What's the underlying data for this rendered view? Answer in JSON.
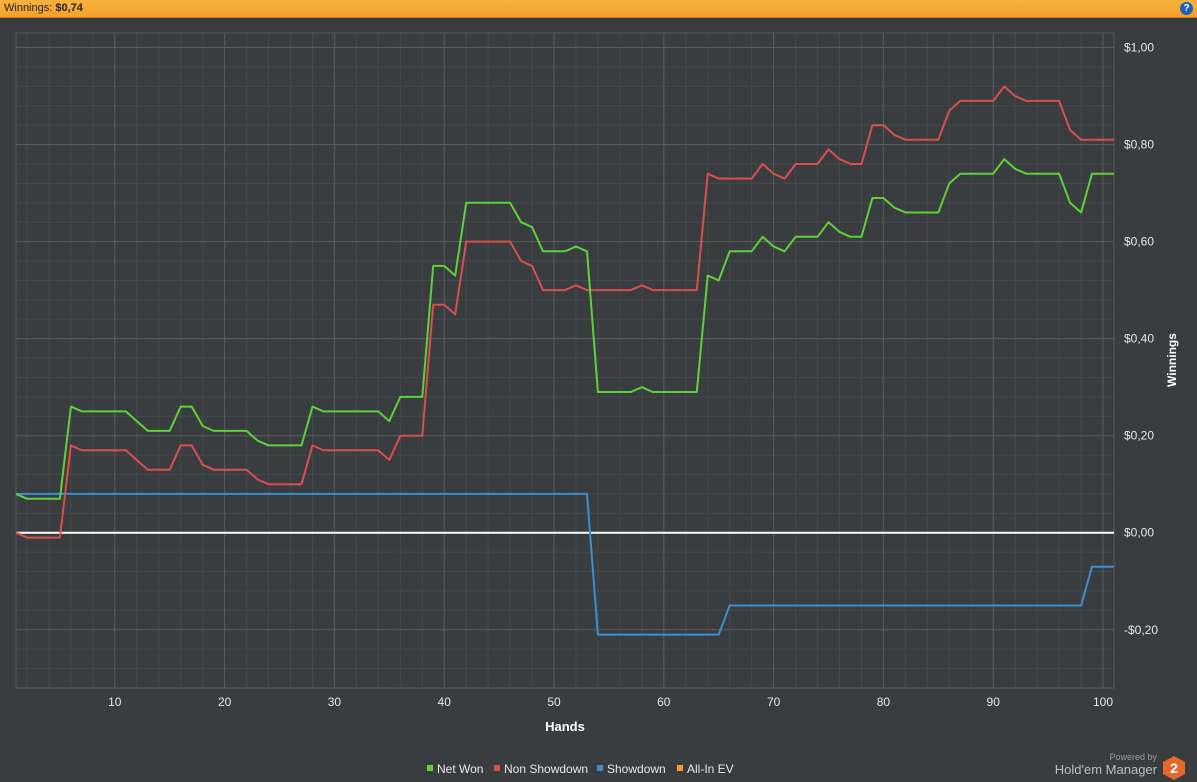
{
  "header": {
    "label": "Winnings:",
    "value": "$0,74"
  },
  "help_icon": "?",
  "branding": {
    "powered_by": "Powered by",
    "product": "Hold'em Manager",
    "logo_text": "2"
  },
  "colors": {
    "net_won": "#5fcf3a",
    "non_showdown": "#d8504b",
    "showdown": "#3b8fcf",
    "all_in_ev": "#f39b2c",
    "background": "#3a3d40",
    "grid": "#5a5d60",
    "zero_line": "#ffffff",
    "accent_bar": "#f5a833"
  },
  "chart_data": {
    "type": "line",
    "xlabel": "Hands",
    "ylabel": "Winnings",
    "xlim": [
      1,
      101
    ],
    "ylim": [
      -0.32,
      1.03
    ],
    "x_ticks": [
      10,
      20,
      30,
      40,
      50,
      60,
      70,
      80,
      90,
      100
    ],
    "y_ticks": [
      -0.2,
      0,
      0.2,
      0.4,
      0.6,
      0.8,
      1.0
    ],
    "y_tick_labels": [
      "-$0,20",
      "$0,00",
      "$0,20",
      "$0,40",
      "$0,60",
      "$0,80",
      "$1,00"
    ],
    "x_tick_labels": [
      "10",
      "20",
      "30",
      "40",
      "50",
      "60",
      "70",
      "80",
      "90",
      "100"
    ],
    "legend_position": "bottom-center",
    "grid": true,
    "series": [
      {
        "name": "Net Won",
        "color": "#5fcf3a",
        "points": [
          [
            1,
            0.08
          ],
          [
            2,
            0.07
          ],
          [
            5,
            0.07
          ],
          [
            6,
            0.26
          ],
          [
            7,
            0.25
          ],
          [
            11,
            0.25
          ],
          [
            13,
            0.21
          ],
          [
            15,
            0.21
          ],
          [
            16,
            0.26
          ],
          [
            17,
            0.26
          ],
          [
            18,
            0.22
          ],
          [
            19,
            0.21
          ],
          [
            22,
            0.21
          ],
          [
            23,
            0.19
          ],
          [
            24,
            0.18
          ],
          [
            27,
            0.18
          ],
          [
            28,
            0.26
          ],
          [
            29,
            0.25
          ],
          [
            34,
            0.25
          ],
          [
            35,
            0.23
          ],
          [
            36,
            0.28
          ],
          [
            38,
            0.28
          ],
          [
            39,
            0.55
          ],
          [
            40,
            0.55
          ],
          [
            41,
            0.53
          ],
          [
            42,
            0.68
          ],
          [
            46,
            0.68
          ],
          [
            47,
            0.64
          ],
          [
            48,
            0.63
          ],
          [
            49,
            0.58
          ],
          [
            51,
            0.58
          ],
          [
            52,
            0.59
          ],
          [
            53,
            0.58
          ],
          [
            54,
            0.29
          ],
          [
            57,
            0.29
          ],
          [
            58,
            0.3
          ],
          [
            59,
            0.29
          ],
          [
            63,
            0.29
          ],
          [
            64,
            0.53
          ],
          [
            65,
            0.52
          ],
          [
            66,
            0.58
          ],
          [
            68,
            0.58
          ],
          [
            69,
            0.61
          ],
          [
            70,
            0.59
          ],
          [
            71,
            0.58
          ],
          [
            72,
            0.61
          ],
          [
            74,
            0.61
          ],
          [
            75,
            0.64
          ],
          [
            76,
            0.62
          ],
          [
            77,
            0.61
          ],
          [
            78,
            0.61
          ],
          [
            79,
            0.69
          ],
          [
            80,
            0.69
          ],
          [
            81,
            0.67
          ],
          [
            82,
            0.66
          ],
          [
            85,
            0.66
          ],
          [
            86,
            0.72
          ],
          [
            87,
            0.74
          ],
          [
            90,
            0.74
          ],
          [
            91,
            0.77
          ],
          [
            92,
            0.75
          ],
          [
            93,
            0.74
          ],
          [
            96,
            0.74
          ],
          [
            97,
            0.68
          ],
          [
            98,
            0.66
          ],
          [
            99,
            0.74
          ],
          [
            101,
            0.74
          ]
        ]
      },
      {
        "name": "Non Showdown",
        "color": "#d8504b",
        "points": [
          [
            1,
            0.0
          ],
          [
            2,
            -0.01
          ],
          [
            5,
            -0.01
          ],
          [
            6,
            0.18
          ],
          [
            7,
            0.17
          ],
          [
            11,
            0.17
          ],
          [
            13,
            0.13
          ],
          [
            15,
            0.13
          ],
          [
            16,
            0.18
          ],
          [
            17,
            0.18
          ],
          [
            18,
            0.14
          ],
          [
            19,
            0.13
          ],
          [
            22,
            0.13
          ],
          [
            23,
            0.11
          ],
          [
            24,
            0.1
          ],
          [
            27,
            0.1
          ],
          [
            28,
            0.18
          ],
          [
            29,
            0.17
          ],
          [
            34,
            0.17
          ],
          [
            35,
            0.15
          ],
          [
            36,
            0.2
          ],
          [
            38,
            0.2
          ],
          [
            39,
            0.47
          ],
          [
            40,
            0.47
          ],
          [
            41,
            0.45
          ],
          [
            42,
            0.6
          ],
          [
            46,
            0.6
          ],
          [
            47,
            0.56
          ],
          [
            48,
            0.55
          ],
          [
            49,
            0.5
          ],
          [
            51,
            0.5
          ],
          [
            52,
            0.51
          ],
          [
            53,
            0.5
          ],
          [
            57,
            0.5
          ],
          [
            58,
            0.51
          ],
          [
            59,
            0.5
          ],
          [
            63,
            0.5
          ],
          [
            64,
            0.74
          ],
          [
            65,
            0.73
          ],
          [
            68,
            0.73
          ],
          [
            69,
            0.76
          ],
          [
            70,
            0.74
          ],
          [
            71,
            0.73
          ],
          [
            72,
            0.76
          ],
          [
            74,
            0.76
          ],
          [
            75,
            0.79
          ],
          [
            76,
            0.77
          ],
          [
            77,
            0.76
          ],
          [
            78,
            0.76
          ],
          [
            79,
            0.84
          ],
          [
            80,
            0.84
          ],
          [
            81,
            0.82
          ],
          [
            82,
            0.81
          ],
          [
            85,
            0.81
          ],
          [
            86,
            0.87
          ],
          [
            87,
            0.89
          ],
          [
            90,
            0.89
          ],
          [
            91,
            0.92
          ],
          [
            92,
            0.9
          ],
          [
            93,
            0.89
          ],
          [
            96,
            0.89
          ],
          [
            97,
            0.83
          ],
          [
            98,
            0.81
          ],
          [
            101,
            0.81
          ]
        ]
      },
      {
        "name": "Showdown",
        "color": "#3b8fcf",
        "points": [
          [
            1,
            0.08
          ],
          [
            53,
            0.08
          ],
          [
            54,
            -0.21
          ],
          [
            65,
            -0.21
          ],
          [
            66,
            -0.15
          ],
          [
            98,
            -0.15
          ],
          [
            99,
            -0.07
          ],
          [
            101,
            -0.07
          ]
        ]
      },
      {
        "name": "All-In EV",
        "color": "#f39b2c",
        "points": []
      }
    ]
  }
}
